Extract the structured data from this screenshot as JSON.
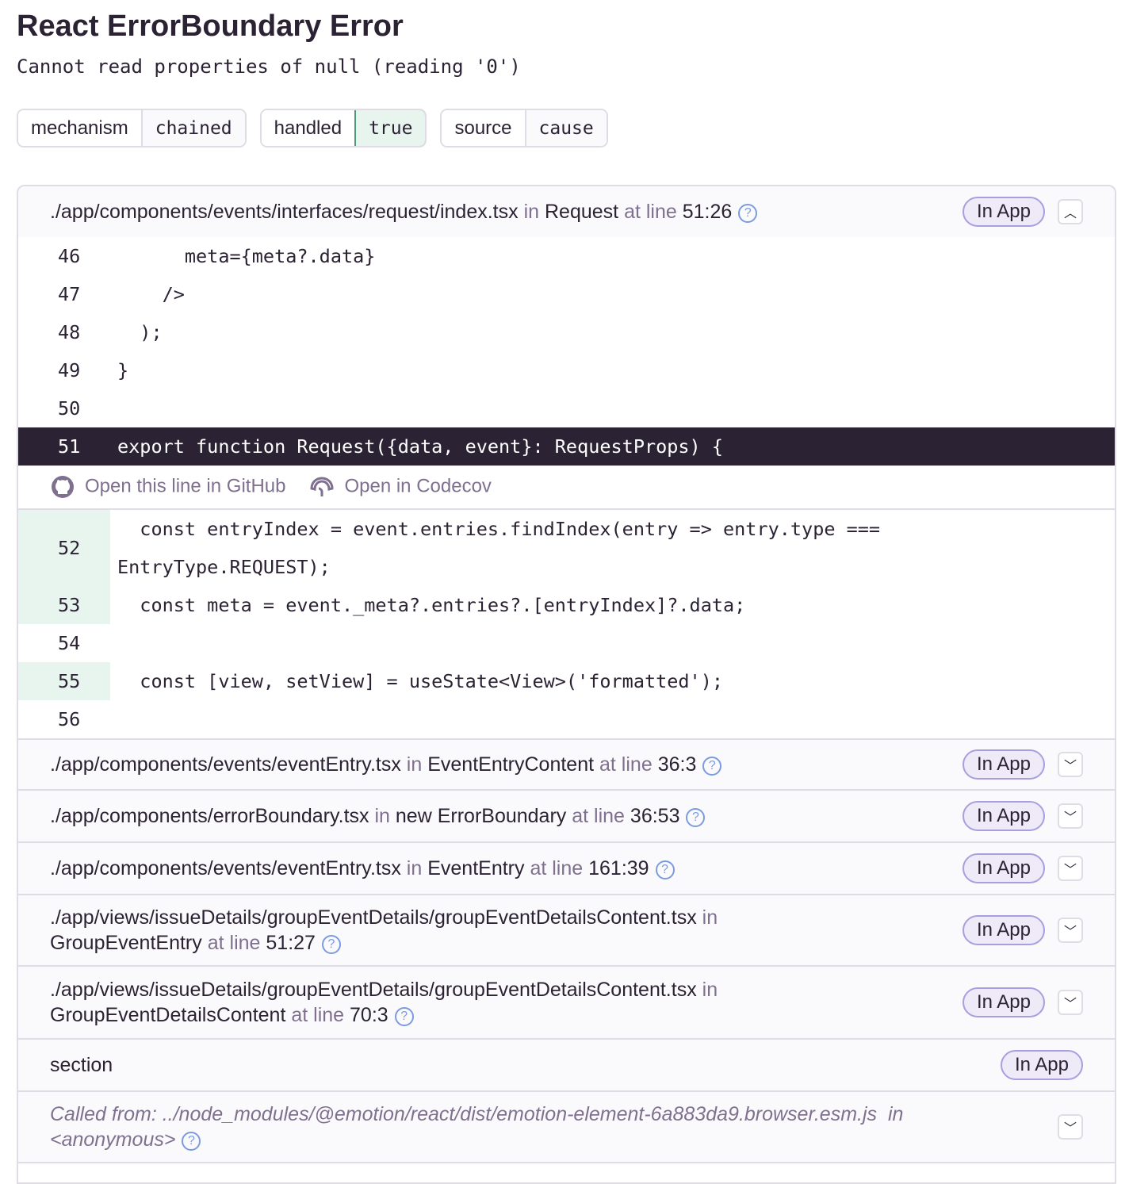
{
  "title": "React ErrorBoundary Error",
  "message": "Cannot read properties of null (reading '0')",
  "tags": [
    {
      "key": "mechanism",
      "value": "chained"
    },
    {
      "key": "handled",
      "value": "true"
    },
    {
      "key": "source",
      "value": "cause"
    }
  ],
  "colors": {
    "highlight_line": "#2b2233",
    "coverage": "#e8f5ee",
    "in_app_border": "#a99fde"
  },
  "frames": [
    {
      "file": "./app/components/events/interfaces/request/index.tsx",
      "in": "in",
      "func": "Request",
      "at": "at line",
      "line": "51:26",
      "badge": "In App",
      "expanded": true
    },
    {
      "file": "./app/components/events/eventEntry.tsx",
      "in": "in",
      "func": "EventEntryContent",
      "at": "at line",
      "line": "36:3",
      "badge": "In App"
    },
    {
      "file": "./app/components/errorBoundary.tsx",
      "in": "in",
      "func": "new ErrorBoundary",
      "at": "at line",
      "line": "36:53",
      "badge": "In App"
    },
    {
      "file": "./app/components/events/eventEntry.tsx",
      "in": "in",
      "func": "EventEntry",
      "at": "at line",
      "line": "161:39",
      "badge": "In App"
    },
    {
      "file": "./app/views/issueDetails/groupEventDetails/groupEventDetailsContent.tsx",
      "in": "in",
      "func": "GroupEventEntry",
      "at": "at line",
      "line": "51:27",
      "badge": "In App"
    },
    {
      "file": "./app/views/issueDetails/groupEventDetails/groupEventDetailsContent.tsx",
      "in": "in",
      "func": "GroupEventDetailsContent",
      "at": "at line",
      "line": "70:3",
      "badge": "In App"
    },
    {
      "file": "section",
      "badge": "In App"
    },
    {
      "called_label": "Called from:",
      "file": "../node_modules/@emotion/react/dist/emotion-element-6a883da9.browser.esm.js",
      "in": "in",
      "func": "<anonymous>"
    }
  ],
  "code_before": [
    {
      "n": "46",
      "code": "      meta={meta?.data}"
    },
    {
      "n": "47",
      "code": "    />"
    },
    {
      "n": "48",
      "code": "  );"
    },
    {
      "n": "49",
      "code": "}"
    },
    {
      "n": "50",
      "code": ""
    },
    {
      "n": "51",
      "code": "export function Request({data, event}: RequestProps) {"
    }
  ],
  "links": {
    "github": "Open this line in GitHub",
    "codecov": "Open in Codecov"
  },
  "code_after": [
    {
      "n": "52",
      "code": "  const entryIndex = event.entries.findIndex(entry => entry.type === EntryType.REQUEST);",
      "covered": true
    },
    {
      "n": "53",
      "code": "  const meta = event._meta?.entries?.[entryIndex]?.data;",
      "covered": true
    },
    {
      "n": "54",
      "code": ""
    },
    {
      "n": "55",
      "code": "  const [view, setView] = useState<View>('formatted');",
      "covered": true
    },
    {
      "n": "56",
      "code": ""
    }
  ]
}
